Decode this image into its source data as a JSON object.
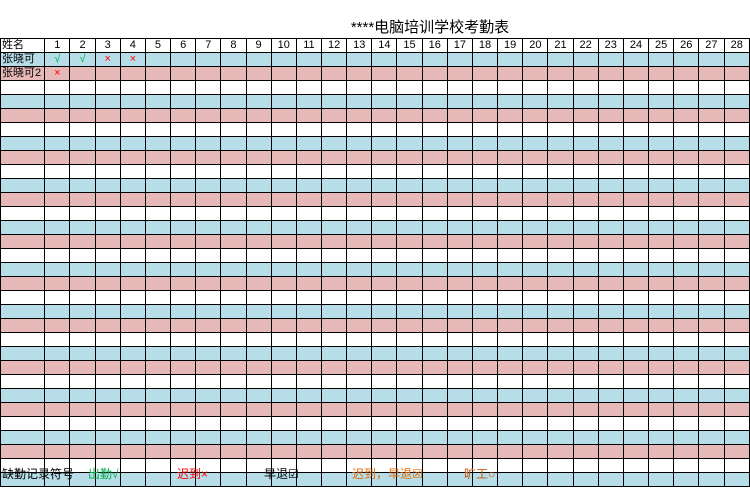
{
  "sheet": {
    "title": "****电脑培训学校考勤表",
    "name_header": "姓名",
    "days": [
      "1",
      "2",
      "3",
      "4",
      "5",
      "6",
      "7",
      "8",
      "9",
      "10",
      "11",
      "12",
      "13",
      "14",
      "15",
      "16",
      "17",
      "18",
      "19",
      "20",
      "21",
      "22",
      "23",
      "24",
      "25",
      "26",
      "27",
      "28"
    ],
    "records": [
      {
        "name": "张晓可",
        "marks": [
          "√",
          "√",
          "×",
          "×"
        ]
      },
      {
        "name": "张晓可2",
        "marks": [
          "×"
        ]
      }
    ],
    "empty_rows": 29
  },
  "legend": {
    "label": "缺勤记录符号",
    "present": "出勤√",
    "late": "迟到×",
    "early_leave": "早退☑",
    "late_and_early": "迟到，早退☒",
    "absent": "旷工○"
  },
  "colors": {
    "row_blue": "#b7dde8",
    "row_pink": "#e6b8b7",
    "present": "#00b050",
    "late": "#ff0000",
    "late_and_early": "#e36c09",
    "absent": "#c65911"
  }
}
